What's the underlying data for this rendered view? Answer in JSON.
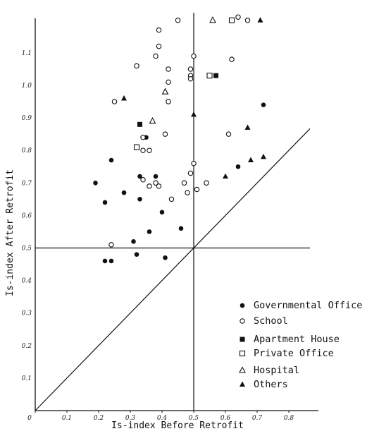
{
  "chart_data": {
    "type": "scatter",
    "title": "",
    "xlabel": "Is-index Before Retrofit",
    "ylabel": "Is-index After Retrofit",
    "xlim": [
      0,
      0.9
    ],
    "ylim": [
      0,
      1.2
    ],
    "x_ticks": [
      "0",
      "0.1",
      "0.2",
      "0.3",
      "0.4",
      "0.5",
      "0.6",
      "0.7",
      "0.8"
    ],
    "y_ticks": [
      "0.1",
      "0.2",
      "0.3",
      "0.4",
      "0.5",
      "0.6",
      "0.7",
      "0.8",
      "0.9",
      "1.0",
      "1.1"
    ],
    "reference_lines": [
      {
        "type": "diagonal",
        "description": "y = x"
      },
      {
        "type": "vertical",
        "x": 0.5
      },
      {
        "type": "horizontal",
        "y": 0.5
      }
    ],
    "grid": false,
    "legend_position": "bottom-right",
    "series": [
      {
        "name": "Governmental Office",
        "marker": "filled-circle",
        "points": [
          [
            0.19,
            0.7
          ],
          [
            0.22,
            0.64
          ],
          [
            0.24,
            0.77
          ],
          [
            0.28,
            0.67
          ],
          [
            0.33,
            0.72
          ],
          [
            0.33,
            0.65
          ],
          [
            0.38,
            0.72
          ],
          [
            0.4,
            0.61
          ],
          [
            0.36,
            0.55
          ],
          [
            0.31,
            0.52
          ],
          [
            0.22,
            0.46
          ],
          [
            0.24,
            0.46
          ],
          [
            0.32,
            0.48
          ],
          [
            0.41,
            0.47
          ],
          [
            0.46,
            0.56
          ],
          [
            0.35,
            0.84
          ],
          [
            0.64,
            0.75
          ],
          [
            0.72,
            0.94
          ]
        ]
      },
      {
        "name": "School",
        "marker": "open-circle",
        "points": [
          [
            0.25,
            0.95
          ],
          [
            0.32,
            1.06
          ],
          [
            0.38,
            1.09
          ],
          [
            0.39,
            1.12
          ],
          [
            0.39,
            1.17
          ],
          [
            0.42,
            1.05
          ],
          [
            0.42,
            1.01
          ],
          [
            0.42,
            0.95
          ],
          [
            0.34,
            0.84
          ],
          [
            0.36,
            0.8
          ],
          [
            0.34,
            0.8
          ],
          [
            0.41,
            0.85
          ],
          [
            0.34,
            0.71
          ],
          [
            0.36,
            0.69
          ],
          [
            0.38,
            0.7
          ],
          [
            0.39,
            0.69
          ],
          [
            0.43,
            0.65
          ],
          [
            0.47,
            0.7
          ],
          [
            0.48,
            0.67
          ],
          [
            0.49,
            0.73
          ],
          [
            0.5,
            0.76
          ],
          [
            0.51,
            0.68
          ],
          [
            0.54,
            0.7
          ],
          [
            0.49,
            1.05
          ],
          [
            0.49,
            1.03
          ],
          [
            0.49,
            1.02
          ],
          [
            0.5,
            1.09
          ],
          [
            0.55,
            1.03
          ],
          [
            0.61,
            0.85
          ],
          [
            0.62,
            1.08
          ],
          [
            0.64,
            1.21
          ],
          [
            0.67,
            1.2
          ],
          [
            0.45,
            1.2
          ],
          [
            0.24,
            0.51
          ]
        ]
      },
      {
        "name": "Apartment House",
        "marker": "filled-square",
        "points": [
          [
            0.33,
            0.88
          ],
          [
            0.57,
            1.03
          ]
        ]
      },
      {
        "name": "Private Office",
        "marker": "open-square",
        "points": [
          [
            0.32,
            0.81
          ],
          [
            0.55,
            1.03
          ],
          [
            0.62,
            1.2
          ]
        ]
      },
      {
        "name": "Hospital",
        "marker": "open-triangle",
        "points": [
          [
            0.37,
            0.89
          ],
          [
            0.41,
            0.98
          ],
          [
            0.56,
            1.2
          ]
        ]
      },
      {
        "name": "Others",
        "marker": "filled-triangle",
        "points": [
          [
            0.28,
            0.96
          ],
          [
            0.5,
            0.91
          ],
          [
            0.6,
            0.72
          ],
          [
            0.67,
            0.87
          ],
          [
            0.68,
            0.77
          ],
          [
            0.72,
            0.78
          ],
          [
            0.71,
            1.2
          ]
        ]
      }
    ]
  }
}
